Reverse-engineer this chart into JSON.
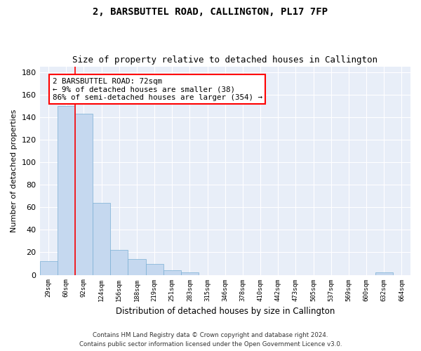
{
  "title": "2, BARSBUTTEL ROAD, CALLINGTON, PL17 7FP",
  "subtitle": "Size of property relative to detached houses in Callington",
  "xlabel": "Distribution of detached houses by size in Callington",
  "ylabel": "Number of detached properties",
  "bar_color": "#c5d8ef",
  "bar_edge_color": "#7aafd4",
  "background_color": "#e8eef8",
  "grid_color": "#ffffff",
  "categories": [
    "29sqm",
    "60sqm",
    "92sqm",
    "124sqm",
    "156sqm",
    "188sqm",
    "219sqm",
    "251sqm",
    "283sqm",
    "315sqm",
    "346sqm",
    "378sqm",
    "410sqm",
    "442sqm",
    "473sqm",
    "505sqm",
    "537sqm",
    "569sqm",
    "600sqm",
    "632sqm",
    "664sqm"
  ],
  "values": [
    12,
    150,
    143,
    64,
    22,
    14,
    10,
    4,
    2,
    0,
    0,
    0,
    0,
    0,
    0,
    0,
    0,
    0,
    0,
    2,
    0
  ],
  "red_line_x": 1.5,
  "annotation_box_text": "2 BARSBUTTEL ROAD: 72sqm\n← 9% of detached houses are smaller (38)\n86% of semi-detached houses are larger (354) →",
  "ylim": [
    0,
    185
  ],
  "yticks": [
    0,
    20,
    40,
    60,
    80,
    100,
    120,
    140,
    160,
    180
  ],
  "footer_line1": "Contains HM Land Registry data © Crown copyright and database right 2024.",
  "footer_line2": "Contains public sector information licensed under the Open Government Licence v3.0."
}
